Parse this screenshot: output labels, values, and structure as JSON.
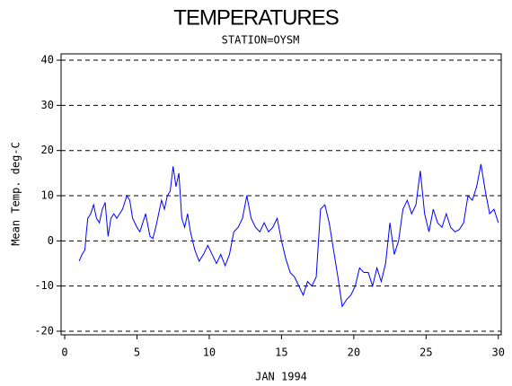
{
  "chart_data": {
    "type": "line",
    "title": "TEMPERATURES",
    "subtitle": "STATION=OYSM",
    "x_label": "JAN 1994",
    "y_label": "Mean Temp. deg-C",
    "x": [
      1,
      1.2,
      1.4,
      1.5,
      1.6,
      1.8,
      2.0,
      2.2,
      2.4,
      2.6,
      2.8,
      3.0,
      3.2,
      3.4,
      3.6,
      3.8,
      4.0,
      4.3,
      4.5,
      4.7,
      5.0,
      5.2,
      5.4,
      5.6,
      5.9,
      6.1,
      6.3,
      6.5,
      6.7,
      6.9,
      7.1,
      7.3,
      7.5,
      7.7,
      7.9,
      8.1,
      8.3,
      8.5,
      8.7,
      9.0,
      9.3,
      9.6,
      9.9,
      10.2,
      10.5,
      10.8,
      11.1,
      11.4,
      11.7,
      12.0,
      12.3,
      12.6,
      12.9,
      13.2,
      13.5,
      13.8,
      14.1,
      14.4,
      14.7,
      15.0,
      15.3,
      15.6,
      15.9,
      16.2,
      16.5,
      16.8,
      17.1,
      17.4,
      17.7,
      18.0,
      18.3,
      18.6,
      18.9,
      19.2,
      19.5,
      19.8,
      20.1,
      20.4,
      20.7,
      21.0,
      21.3,
      21.6,
      21.9,
      22.2,
      22.5,
      22.8,
      23.1,
      23.4,
      23.7,
      24.0,
      24.3,
      24.6,
      24.9,
      25.2,
      25.5,
      25.8,
      26.1,
      26.4,
      26.7,
      27.0,
      27.3,
      27.6,
      27.9,
      28.2,
      28.5,
      28.8,
      29.1,
      29.4,
      29.7,
      30.0
    ],
    "series": [
      {
        "name": "Mean Temp",
        "color": "#0000ff",
        "values": [
          -4.5,
          -3,
          -2,
          2,
          5,
          6,
          8,
          5,
          4,
          7,
          8.5,
          1,
          5,
          6,
          5,
          6,
          7,
          10,
          9,
          5,
          3,
          2,
          4,
          6,
          1,
          0.5,
          3,
          6,
          9,
          7,
          10,
          11,
          16.5,
          12,
          15,
          5,
          3,
          6,
          2,
          -2,
          -4.5,
          -3,
          -1,
          -3,
          -5,
          -3,
          -5.5,
          -3,
          2,
          3,
          5,
          10,
          5,
          3,
          2,
          4,
          2,
          3,
          5,
          0,
          -4,
          -7,
          -8,
          -10,
          -12,
          -9,
          -10,
          -8,
          7,
          8,
          4,
          -2,
          -8,
          -14.5,
          -13,
          -12,
          -10,
          -6,
          -7,
          -7,
          -10,
          -6,
          -9,
          -5,
          4,
          -3,
          0,
          7,
          9,
          6,
          8,
          15.5,
          6,
          2,
          7,
          4,
          3,
          6,
          3,
          2,
          2.5,
          4,
          10,
          9,
          12,
          17,
          11,
          6,
          7,
          4
        ]
      }
    ],
    "xlim": [
      -0.25,
      30.2
    ],
    "xticks": [
      0,
      5,
      10,
      15,
      20,
      25,
      30
    ],
    "ylim": [
      -20.8,
      41.4
    ],
    "yticks": [
      -20,
      -10,
      0,
      10,
      20,
      30,
      40
    ],
    "grid": true
  }
}
